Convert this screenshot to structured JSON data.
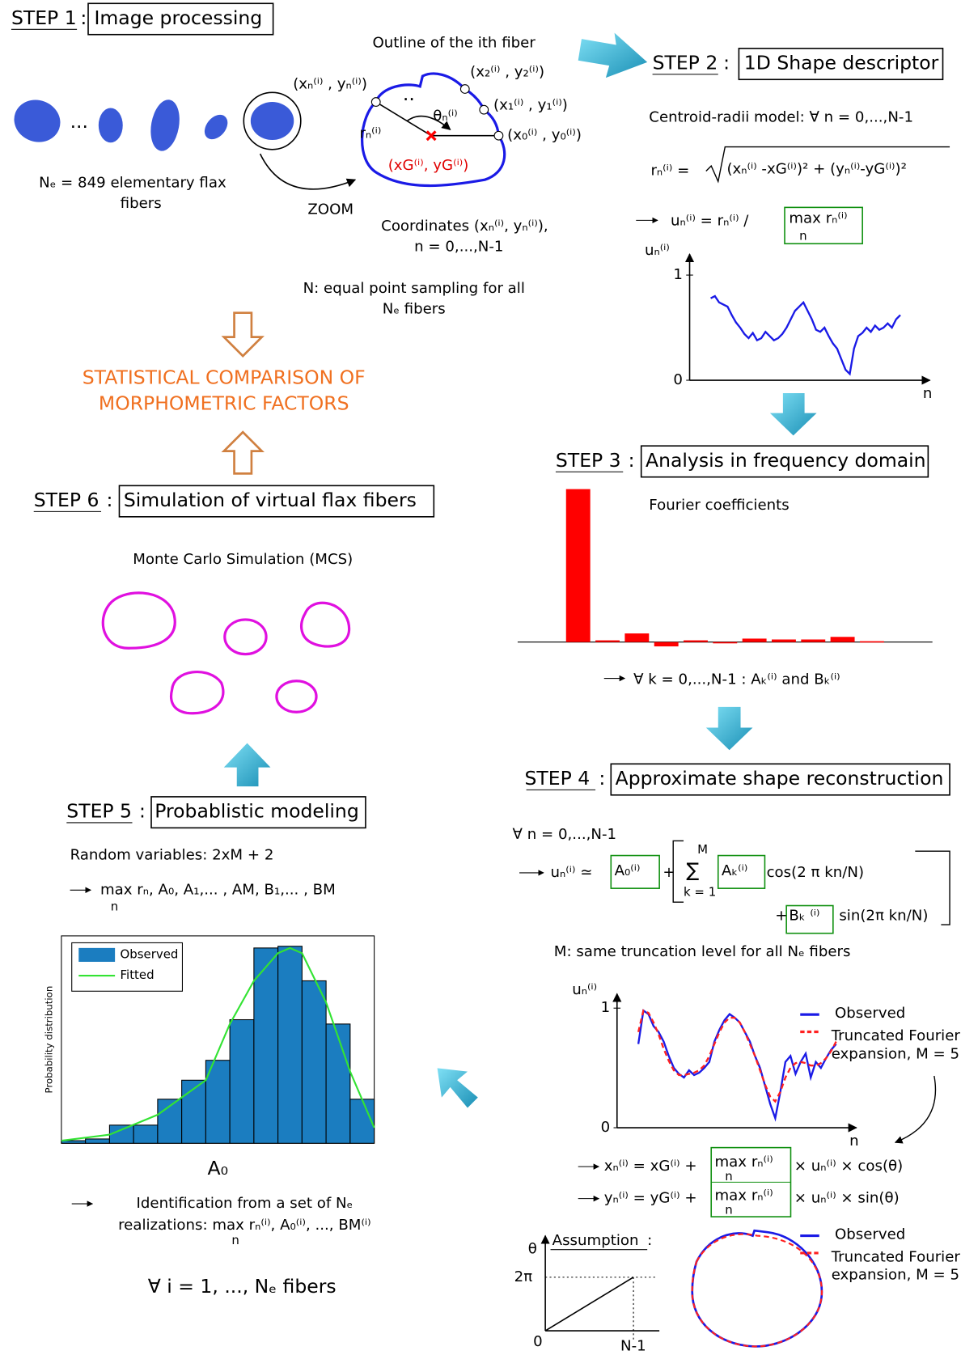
{
  "separator": ":",
  "step1": {
    "label": "STEP 1",
    "title": "Image processing",
    "fiber_count": "Nₑ = 849 elementary flax",
    "fiber_count2": "fibers",
    "ellipsis": "...",
    "outline_title": "Outline of the ith fiber",
    "zoom": "ZOOM",
    "point_n": "(xₙ⁽ⁱ⁾ , yₙ⁽ⁱ⁾)",
    "point_2": "(x₂⁽ⁱ⁾ , y₂⁽ⁱ⁾)",
    "point_1": "(x₁⁽ⁱ⁾ , y₁⁽ⁱ⁾)",
    "point_0": "(x₀⁽ⁱ⁾ , y₀⁽ⁱ⁾)",
    "radius": "rₙ⁽ⁱ⁾",
    "angle": "θₙ⁽ⁱ⁾",
    "centroid": "(xG⁽ⁱ⁾, yG⁽ⁱ⁾)",
    "dots": "..",
    "coords": "Coordinates (xₙ⁽ⁱ⁾, yₙ⁽ⁱ⁾),",
    "coords_range": "n = 0,...,N-1",
    "sampling": "N: equal point sampling for all",
    "sampling2": "Nₑ fibers"
  },
  "comparison": [
    "STATISTICAL COMPARISON OF",
    "MORPHOMETRIC FACTORS"
  ],
  "step2": {
    "label": "STEP 2",
    "title": "1D Shape descriptor",
    "model": "Centroid-radii model: ∀ n = 0,...,N-1",
    "radius_lhs": "rₙ⁽ⁱ⁾ =",
    "radius_rhs": "(xₙ⁽ⁱ⁾ -xG⁽ⁱ⁾)² + (yₙ⁽ⁱ⁾-yG⁽ⁱ⁾)²",
    "norm": "uₙ⁽ⁱ⁾ = rₙ⁽ⁱ⁾ /",
    "norm_box": "max rₙ⁽ⁱ⁾",
    "max_sub": "n",
    "chart": {
      "type": "line",
      "y_label": "uₙ⁽ⁱ⁾",
      "x_label": "n",
      "ylim": [
        0,
        1.2
      ],
      "yticks": [
        0,
        1
      ],
      "xlim": [
        -5,
        52
      ],
      "color": "#1a1ae6",
      "values": [
        0.78,
        0.8,
        0.74,
        0.72,
        0.7,
        0.62,
        0.55,
        0.5,
        0.44,
        0.4,
        0.45,
        0.38,
        0.4,
        0.46,
        0.42,
        0.38,
        0.4,
        0.44,
        0.5,
        0.58,
        0.66,
        0.7,
        0.74,
        0.66,
        0.58,
        0.48,
        0.46,
        0.5,
        0.42,
        0.35,
        0.3,
        0.2,
        0.1,
        0.06,
        0.3,
        0.42,
        0.45,
        0.5,
        0.46,
        0.52,
        0.48,
        0.5,
        0.54,
        0.5,
        0.58,
        0.62
      ]
    }
  },
  "step3": {
    "label": "STEP 3",
    "title": "Analysis in frequency domain",
    "result": "∀ k = 0,...,N-1 : Aₖ⁽ⁱ⁾ and Bₖ⁽ⁱ⁾",
    "chart": {
      "type": "bar",
      "title": "Fourier coefficients",
      "ylim": [
        -10,
        180
      ],
      "color": "#ff0000",
      "values": [
        177,
        2,
        10,
        -5,
        2,
        0,
        4,
        3,
        3,
        6,
        1
      ]
    }
  },
  "step4": {
    "label": "STEP 4",
    "title": "Approximate shape reconstruction",
    "forall": "∀ n = 0,...,N-1",
    "lhs": "uₙ⁽ⁱ⁾ ≃",
    "a0": "A₀⁽ⁱ⁾",
    "plus": "+",
    "sum_top": "M",
    "sum": "∑",
    "sum_bottom": "k = 1",
    "ak": "Aₖ⁽ⁱ⁾",
    "cos": "cos(2 π kn/N)",
    "bk": "Bₖ ⁽ⁱ⁾",
    "sin": "sin(2π  kn/N)",
    "truncation": "M: same truncation level for all Nₑ fibers",
    "chart": {
      "type": "line",
      "y_label": "uₙ⁽ⁱ⁾",
      "x_label": "n",
      "ylim": [
        0,
        1.12
      ],
      "yticks": [
        0,
        1
      ],
      "xlim": [
        -4.2,
        43
      ],
      "series": [
        {
          "name": "Observed",
          "color": "#1a1ae6",
          "values": [
            0.7,
            0.98,
            0.95,
            0.85,
            0.8,
            0.72,
            0.6,
            0.5,
            0.45,
            0.42,
            0.48,
            0.44,
            0.46,
            0.5,
            0.55,
            0.72,
            0.82,
            0.9,
            0.95,
            0.92,
            0.88,
            0.8,
            0.72,
            0.6,
            0.5,
            0.35,
            0.2,
            0.08,
            0.3,
            0.55,
            0.6,
            0.45,
            0.55,
            0.62,
            0.42,
            0.55,
            0.5,
            0.58,
            0.65,
            0.7
          ]
        },
        {
          "name": "Truncated Fourier expansion, M = 5",
          "color": "#ff2020",
          "values": [
            0.8,
            0.98,
            0.96,
            0.88,
            0.78,
            0.66,
            0.56,
            0.48,
            0.44,
            0.44,
            0.45,
            0.46,
            0.48,
            0.52,
            0.6,
            0.7,
            0.8,
            0.88,
            0.92,
            0.92,
            0.88,
            0.8,
            0.7,
            0.6,
            0.48,
            0.36,
            0.26,
            0.22,
            0.3,
            0.42,
            0.5,
            0.54,
            0.55,
            0.54,
            0.52,
            0.52,
            0.54,
            0.58,
            0.64,
            0.72
          ]
        }
      ]
    },
    "x_eq": "xₙ⁽ⁱ⁾ = xG⁽ⁱ⁾ +",
    "y_eq": "yₙ⁽ⁱ⁾ = yG⁽ⁱ⁾ +",
    "max_box": "max rₙ⁽ⁱ⁾",
    "max_sub": "n",
    "x_tail": "× uₙ⁽ⁱ⁾ × cos(θ)",
    "y_tail": "× uₙ⁽ⁱ⁾ × sin(θ)",
    "assumption": "Assumption",
    "theta": "θ",
    "two_pi": "2π",
    "zero": "0",
    "n_minus_1": "N-1"
  },
  "step5": {
    "label": "STEP 5",
    "title": "Probablistic modeling",
    "random": "Random variables: 2xM + 2",
    "vars": "max rₙ, A₀, A₁,... , AM, B₁,... , BM",
    "max_sub": "n",
    "chart": {
      "type": "histogram",
      "x_label": "A₀",
      "y_label": "Probability distribution",
      "xlim": [
        0,
        13
      ],
      "ylim": [
        0,
        240
      ],
      "bins": [
        0,
        1,
        2,
        3,
        4,
        5,
        6,
        7,
        8,
        9,
        10,
        11,
        12,
        13
      ],
      "counts": [
        3,
        5,
        21,
        21,
        51,
        73,
        96,
        143,
        226,
        228,
        188,
        138,
        51
      ],
      "series": [
        {
          "name": "Observed",
          "color": "#1b7dc0"
        },
        {
          "name": "Fitted",
          "color": "#33e333",
          "x": [
            0,
            2,
            4,
            6,
            7,
            8,
            9,
            9.5,
            10,
            11,
            12,
            13
          ],
          "values": [
            3,
            10,
            33,
            73,
            138,
            188,
            220,
            226,
            220,
            163,
            83,
            18
          ]
        }
      ]
    },
    "identification": "Identification from a set of Nₑ",
    "realizations": "realizations: max rₙ⁽ⁱ⁾, A₀⁽ⁱ⁾, ..., BM⁽ⁱ⁾",
    "forall": "∀ i = 1, ..., Nₑ fibers"
  },
  "step6": {
    "label": "STEP 6",
    "title": "Simulation of virtual flax fibers",
    "mcs": "Monte Carlo Simulation (MCS)"
  }
}
